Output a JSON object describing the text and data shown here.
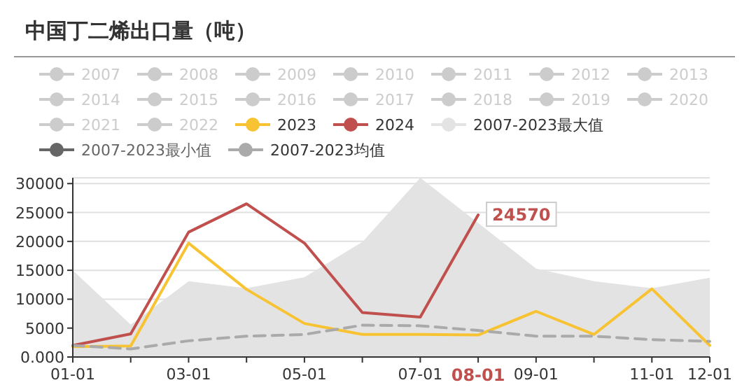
{
  "chart_data": {
    "type": "line",
    "title": "中国丁二烯出口量（吨）",
    "categories": [
      "01-01",
      null,
      "03-01",
      null,
      "05-01",
      null,
      "07-01",
      "08-01",
      "09-01",
      null,
      "11-01",
      "12-01"
    ],
    "series": [
      {
        "name": "2007",
        "color": "#cccccc",
        "values": [
          null,
          null,
          null,
          null,
          null,
          null,
          null,
          null,
          null,
          null,
          null,
          null
        ]
      },
      {
        "name": "2008",
        "color": "#cccccc",
        "values": [
          null,
          null,
          null,
          null,
          null,
          null,
          null,
          null,
          null,
          null,
          null,
          null
        ]
      },
      {
        "name": "2009",
        "color": "#cccccc",
        "values": [
          null,
          null,
          null,
          null,
          null,
          null,
          null,
          null,
          null,
          null,
          null,
          null
        ]
      },
      {
        "name": "2010",
        "color": "#cccccc",
        "values": [
          null,
          null,
          null,
          null,
          null,
          null,
          null,
          null,
          null,
          null,
          null,
          null
        ]
      },
      {
        "name": "2011",
        "color": "#cccccc",
        "values": [
          null,
          null,
          null,
          null,
          null,
          null,
          null,
          null,
          null,
          null,
          null,
          null
        ]
      },
      {
        "name": "2012",
        "color": "#cccccc",
        "values": [
          null,
          null,
          null,
          null,
          null,
          null,
          null,
          null,
          null,
          null,
          null,
          null
        ]
      },
      {
        "name": "2013",
        "color": "#cccccc",
        "values": [
          null,
          null,
          null,
          null,
          null,
          null,
          null,
          null,
          null,
          null,
          null,
          null
        ]
      },
      {
        "name": "2014",
        "color": "#cccccc",
        "values": [
          null,
          null,
          null,
          null,
          null,
          null,
          null,
          null,
          null,
          null,
          null,
          null
        ]
      },
      {
        "name": "2015",
        "color": "#cccccc",
        "values": [
          null,
          null,
          null,
          null,
          null,
          null,
          null,
          null,
          null,
          null,
          null,
          null
        ]
      },
      {
        "name": "2016",
        "color": "#cccccc",
        "values": [
          null,
          null,
          null,
          null,
          null,
          null,
          null,
          null,
          null,
          null,
          null,
          null
        ]
      },
      {
        "name": "2017",
        "color": "#cccccc",
        "values": [
          null,
          null,
          null,
          null,
          null,
          null,
          null,
          null,
          null,
          null,
          null,
          null
        ]
      },
      {
        "name": "2018",
        "color": "#cccccc",
        "values": [
          null,
          null,
          null,
          null,
          null,
          null,
          null,
          null,
          null,
          null,
          null,
          null
        ]
      },
      {
        "name": "2019",
        "color": "#cccccc",
        "values": [
          null,
          null,
          null,
          null,
          null,
          null,
          null,
          null,
          null,
          null,
          null,
          null
        ]
      },
      {
        "name": "2020",
        "color": "#cccccc",
        "values": [
          null,
          null,
          null,
          null,
          null,
          null,
          null,
          null,
          null,
          null,
          null,
          null
        ]
      },
      {
        "name": "2021",
        "color": "#cccccc",
        "values": [
          null,
          null,
          null,
          null,
          null,
          null,
          null,
          null,
          null,
          null,
          null,
          null
        ]
      },
      {
        "name": "2022",
        "color": "#cccccc",
        "values": [
          null,
          null,
          null,
          null,
          null,
          null,
          null,
          null,
          null,
          null,
          null,
          null
        ]
      },
      {
        "name": "2023",
        "color": "#f8c332",
        "values": [
          1800,
          1900,
          19700,
          11700,
          5800,
          3900,
          3900,
          3800,
          7900,
          3900,
          11800,
          2000
        ]
      },
      {
        "name": "2024",
        "color": "#c0504d",
        "values": [
          2000,
          4000,
          21600,
          26500,
          19700,
          7700,
          6900,
          24570,
          null,
          null,
          null,
          null
        ]
      },
      {
        "name": "2007-2023最大值",
        "type": "area",
        "color": "#e3e3e3",
        "values": [
          15000,
          5600,
          13100,
          11900,
          13800,
          19900,
          31000,
          23200,
          15300,
          13100,
          11900,
          13700
        ]
      },
      {
        "name": "2007-2023最小值",
        "color": "#666666",
        "values": [
          null,
          null,
          null,
          null,
          null,
          null,
          null,
          null,
          null,
          null,
          null,
          null
        ]
      },
      {
        "name": "2007-2023均值",
        "color": "#aaaaaa",
        "line_style": "dashed",
        "values": [
          2000,
          1400,
          2800,
          3600,
          3900,
          5500,
          5400,
          4600,
          3600,
          3600,
          3000,
          2700
        ]
      }
    ],
    "ylim": [
      0,
      31000
    ],
    "yticks": [
      {
        "value": 0,
        "label": "0.000"
      },
      5000,
      10000,
      15000,
      20000,
      25000,
      30000
    ],
    "grid": "y",
    "legend": "top",
    "marker": "none",
    "annotations": [
      {
        "text": "24570",
        "x": "08-01",
        "y": 24570
      }
    ]
  }
}
